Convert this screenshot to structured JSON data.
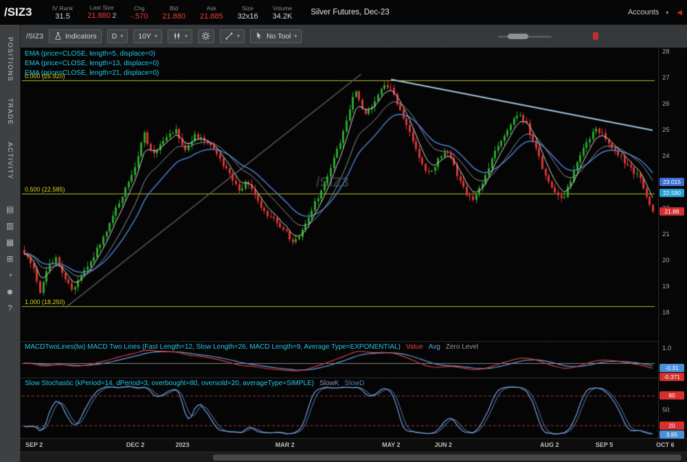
{
  "icons": {
    "caret_down": "▾",
    "collapse_left": "◀"
  },
  "header": {
    "symbol": "/SIZ3",
    "quote_fields": [
      {
        "label": "IV Rank",
        "value": "31.5",
        "color": "#d9d9d9"
      },
      {
        "label": "Last Size",
        "value": "21.880",
        "size_value": "2",
        "color": "#f03e2e"
      },
      {
        "label": "Chg",
        "value": "-.570",
        "color": "#f03e2e"
      },
      {
        "label": "Bid",
        "value": "21.880",
        "color": "#f03e2e"
      },
      {
        "label": "Ask",
        "value": "21.885",
        "color": "#f03e2e"
      },
      {
        "label": "Size",
        "value": "32x16",
        "color": "#d9d9d9"
      },
      {
        "label": "Volume",
        "value": "34.2K",
        "color": "#d9d9d9"
      }
    ],
    "instrument_name": "Silver Futures, Dec-23",
    "accounts_label": "Accounts"
  },
  "sidebar": {
    "tabs": [
      "POSITIONS",
      "TRADE",
      "ACTIVITY"
    ],
    "icons": [
      {
        "name": "notes-icon",
        "glyph": "▤"
      },
      {
        "name": "clipboard-icon",
        "glyph": "▥"
      },
      {
        "name": "calculator-icon",
        "glyph": "▦"
      },
      {
        "name": "apps-grid-icon",
        "glyph": "⊞"
      },
      {
        "name": "clock-icon",
        "glyph": "◔"
      },
      {
        "name": "users-icon",
        "glyph": "☻"
      },
      {
        "name": "help-icon",
        "glyph": "?"
      }
    ]
  },
  "toolbar": {
    "symbol": "/SIZ3",
    "indicators_label": "Indicators",
    "aggregation": "D",
    "range": "10Y",
    "active_tool": "No Tool"
  },
  "price_pane": {
    "studies": [
      "EMA (price=CLOSE, length=5, displace=0)",
      "EMA (price=CLOSE, length=13, displace=0)",
      "EMA (price=CLOSE, length=21, displace=0)"
    ],
    "fib_levels": [
      {
        "label": "0.000 (26.920)",
        "price": 26.92
      },
      {
        "label": "0.500 (22.585)",
        "price": 22.585
      },
      {
        "label": "1.000 (18.250)",
        "price": 18.25
      }
    ],
    "watermark": "/SIZ3"
  },
  "price_axis": {
    "ticks": [
      28,
      27,
      26,
      25,
      24,
      23,
      22,
      21,
      20,
      19,
      18
    ],
    "bubbles": [
      {
        "text": "23.015",
        "color": "#3b6fd4",
        "value": 23.015
      },
      {
        "text": "22.590",
        "color": "#27a0d4",
        "value": 22.59
      },
      {
        "text": "21.88",
        "color": "#d62f2f",
        "value": 21.88
      }
    ]
  },
  "macd": {
    "title": "MACDTwoLines(tw) MACD Two Lines (Fast Length=12, Slow Length=26, MACD Length=9, Average Type=EXPONENTIAL)",
    "title_color": "#1fc8e8",
    "legend": [
      {
        "text": "Value",
        "color": "#e04545"
      },
      {
        "text": "Avg",
        "color": "#5f9fe0"
      },
      {
        "text": "Zero Level",
        "color": "#9a9a9a"
      }
    ],
    "ticks": [
      {
        "text": "1.0",
        "value": 1.0
      }
    ],
    "bubbles": [
      {
        "text": "-0.31",
        "color": "#4a90d9",
        "value": -0.31
      },
      {
        "text": "-0.371",
        "color": "#d62f2f",
        "value": -0.371
      }
    ]
  },
  "stoch": {
    "title": "Slow Stochastic (kPeriod=14, dPeriod=3, overbought=80, oversold=20, averageType=SIMPLE)",
    "title_color": "#1fc8e8",
    "legend": [
      {
        "text": "SlowK",
        "color": "#8a9bb0"
      },
      {
        "text": "SlowD",
        "color": "#5d7ea6"
      }
    ],
    "ticks": [
      {
        "text": "50",
        "value": 50
      }
    ],
    "bubbles": [
      {
        "text": "80",
        "color": "#d62f2f",
        "value": 80
      },
      {
        "text": "20",
        "color": "#d62f2f",
        "value": 20
      },
      {
        "text": "3.85",
        "color": "#4a90d9",
        "value": 3.85
      }
    ]
  },
  "time_axis": {
    "labels": [
      {
        "text": "SEP 2",
        "t": 0.016
      },
      {
        "text": "DEC 2",
        "t": 0.177
      },
      {
        "text": "2023",
        "t": 0.252
      },
      {
        "text": "MAR 2",
        "t": 0.415
      },
      {
        "text": "MAY 2",
        "t": 0.584
      },
      {
        "text": "JUN 2",
        "t": 0.667
      },
      {
        "text": "AUG 2",
        "t": 0.836
      },
      {
        "text": "SEP 5",
        "t": 0.923
      },
      {
        "text": "OCT 6",
        "t": 1.02
      }
    ]
  },
  "chart_data": {
    "type": "candlestick",
    "symbol": "/SIZ3",
    "price_range": [
      18,
      28
    ],
    "num_candles": 200,
    "last_price": 21.88,
    "up_color": "#2aa82a",
    "down_color": "#de3535",
    "ema_colors": {
      "ema5": "#d9d9d9",
      "ema13": "#8f969e",
      "ema21": "#4d7fd0"
    },
    "fib_color": "#bdbd2a",
    "anchors": [
      [
        0.0,
        20.3
      ],
      [
        0.016,
        19.6
      ],
      [
        0.025,
        18.75
      ],
      [
        0.038,
        19.9
      ],
      [
        0.051,
        20.1
      ],
      [
        0.066,
        19.2
      ],
      [
        0.077,
        18.85
      ],
      [
        0.098,
        19.7
      ],
      [
        0.12,
        20.6
      ],
      [
        0.142,
        21.8
      ],
      [
        0.158,
        22.6
      ],
      [
        0.175,
        23.6
      ],
      [
        0.191,
        24.9
      ],
      [
        0.204,
        24.0
      ],
      [
        0.224,
        24.7
      ],
      [
        0.242,
        25.0
      ],
      [
        0.255,
        24.2
      ],
      [
        0.27,
        24.8
      ],
      [
        0.29,
        24.55
      ],
      [
        0.309,
        24.0
      ],
      [
        0.328,
        23.2
      ],
      [
        0.344,
        22.7
      ],
      [
        0.355,
        23.1
      ],
      [
        0.368,
        22.4
      ],
      [
        0.386,
        21.7
      ],
      [
        0.401,
        21.5
      ],
      [
        0.419,
        21.0
      ],
      [
        0.43,
        20.65
      ],
      [
        0.443,
        21.2
      ],
      [
        0.456,
        21.9
      ],
      [
        0.47,
        22.6
      ],
      [
        0.486,
        23.5
      ],
      [
        0.503,
        24.6
      ],
      [
        0.517,
        25.7
      ],
      [
        0.526,
        26.65
      ],
      [
        0.534,
        26.0
      ],
      [
        0.543,
        25.6
      ],
      [
        0.557,
        26.1
      ],
      [
        0.572,
        26.75
      ],
      [
        0.583,
        26.6
      ],
      [
        0.596,
        25.9
      ],
      [
        0.609,
        25.2
      ],
      [
        0.623,
        24.3
      ],
      [
        0.637,
        23.5
      ],
      [
        0.648,
        23.4
      ],
      [
        0.661,
        24.0
      ],
      [
        0.674,
        24.15
      ],
      [
        0.689,
        23.3
      ],
      [
        0.703,
        22.6
      ],
      [
        0.716,
        22.35
      ],
      [
        0.729,
        23.0
      ],
      [
        0.743,
        23.8
      ],
      [
        0.757,
        24.6
      ],
      [
        0.773,
        25.2
      ],
      [
        0.787,
        25.75
      ],
      [
        0.801,
        25.1
      ],
      [
        0.814,
        24.3
      ],
      [
        0.827,
        23.4
      ],
      [
        0.842,
        22.6
      ],
      [
        0.856,
        22.3
      ],
      [
        0.869,
        23.1
      ],
      [
        0.882,
        23.9
      ],
      [
        0.896,
        24.6
      ],
      [
        0.91,
        25.1
      ],
      [
        0.923,
        24.7
      ],
      [
        0.938,
        24.2
      ],
      [
        0.951,
        23.9
      ],
      [
        0.965,
        23.5
      ],
      [
        0.978,
        23.2
      ],
      [
        0.989,
        22.6
      ],
      [
        1.0,
        21.88
      ]
    ],
    "trendlines": [
      {
        "t0": 0.066,
        "p0": 18.2,
        "t1": 0.536,
        "p1": 27.15,
        "color": "#585858",
        "width": 1.5
      },
      {
        "t0": 0.584,
        "p0": 26.95,
        "t1": 1.0,
        "p1": 25.0,
        "color": "#a3c6e0",
        "width": 2
      }
    ]
  }
}
